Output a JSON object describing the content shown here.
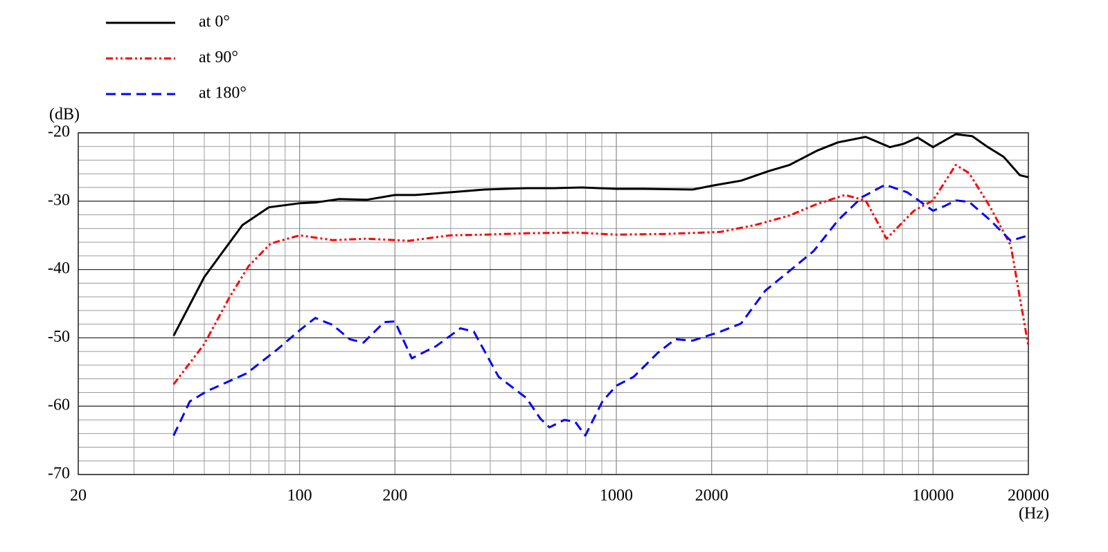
{
  "chart_data": {
    "type": "line",
    "xlabel": "(Hz)",
    "ylabel": "(dB)",
    "xscale": "log",
    "grid": true,
    "xlim": [
      20,
      20000
    ],
    "ylim": [
      -70,
      -20
    ],
    "xticks": [
      20,
      100,
      200,
      1000,
      2000,
      10000,
      20000
    ],
    "xminorticks": [
      30,
      40,
      50,
      60,
      70,
      80,
      90,
      300,
      400,
      500,
      600,
      700,
      800,
      900,
      3000,
      4000,
      5000,
      6000,
      7000,
      8000,
      9000
    ],
    "yticks": [
      -20,
      -30,
      -40,
      -50,
      -60,
      -70
    ],
    "yminorticks": [
      -22,
      -24,
      -26,
      -28,
      -32,
      -34,
      -36,
      -38,
      -42,
      -44,
      -46,
      -48,
      -52,
      -54,
      -56,
      -58,
      -62,
      -64,
      -66,
      -68
    ],
    "legend": "top-left",
    "series": [
      {
        "name": "at 0°",
        "color": "#000000",
        "style": "solid",
        "x": [
          40,
          50,
          56,
          66,
          80,
          100,
          112,
          133,
          163,
          200,
          232,
          299,
          384,
          520,
          636,
          778,
          1000,
          1224,
          1742,
          2024,
          2476,
          3029,
          3524,
          4309,
          5010,
          6125,
          7310,
          8090,
          8940,
          10000,
          11800,
          13300,
          14800,
          16700,
          18800,
          20000
        ],
        "values": [
          -49.7,
          -41.1,
          -38.0,
          -33.5,
          -30.9,
          -30.3,
          -30.2,
          -29.7,
          -29.8,
          -29.1,
          -29.1,
          -28.7,
          -28.3,
          -28.1,
          -28.1,
          -28.0,
          -28.2,
          -28.2,
          -28.3,
          -27.7,
          -27.0,
          -25.6,
          -24.7,
          -22.6,
          -21.4,
          -20.6,
          -22.1,
          -21.6,
          -20.7,
          -22.1,
          -20.2,
          -20.5,
          -22.0,
          -23.5,
          -26.2,
          -26.5
        ]
      },
      {
        "name": "at 90°",
        "color": "#ff0000",
        "style": "dashdotdot",
        "x": [
          40,
          50,
          60,
          69,
          81,
          100,
          127,
          163,
          221,
          299,
          384,
          520,
          742,
          1000,
          1423,
          2129,
          2740,
          3524,
          4309,
          5272,
          6125,
          7130,
          8710,
          10000,
          11800,
          13000,
          15170,
          17600,
          20000
        ],
        "values": [
          -56.8,
          -50.9,
          -44.1,
          -39.5,
          -36.2,
          -35.0,
          -35.7,
          -35.5,
          -35.8,
          -35.0,
          -34.9,
          -34.7,
          -34.6,
          -34.9,
          -34.8,
          -34.5,
          -33.5,
          -32.1,
          -30.4,
          -29.1,
          -29.9,
          -35.5,
          -31.4,
          -29.9,
          -24.7,
          -25.9,
          -30.9,
          -36.5,
          -51.2
        ]
      },
      {
        "name": "at 180°",
        "color": "#0000ff",
        "style": "dashed",
        "x": [
          40,
          45,
          51,
          68,
          85,
          100,
          112,
          127,
          144,
          159,
          185,
          200,
          226,
          270,
          322,
          355,
          425,
          520,
          575,
          615,
          686,
          742,
          798,
          904,
          1000,
          1135,
          1352,
          1535,
          1742,
          2129,
          2476,
          2953,
          3524,
          4200,
          5010,
          5970,
          7060,
          8290,
          10000,
          10900,
          11800,
          13000,
          15170,
          17600,
          20000
        ],
        "values": [
          -64.3,
          -59.3,
          -57.8,
          -55.2,
          -51.7,
          -48.9,
          -47.1,
          -48.1,
          -50.2,
          -50.7,
          -47.7,
          -47.6,
          -53.0,
          -51.2,
          -48.6,
          -49.1,
          -55.7,
          -58.8,
          -61.8,
          -63.1,
          -62.0,
          -62.3,
          -64.3,
          -59.3,
          -57.0,
          -55.7,
          -52.2,
          -50.2,
          -50.4,
          -49.1,
          -47.9,
          -43.1,
          -40.2,
          -37.3,
          -32.8,
          -29.4,
          -27.6,
          -28.7,
          -31.4,
          -30.7,
          -29.9,
          -30.1,
          -32.8,
          -35.8,
          -35.0
        ]
      }
    ]
  }
}
